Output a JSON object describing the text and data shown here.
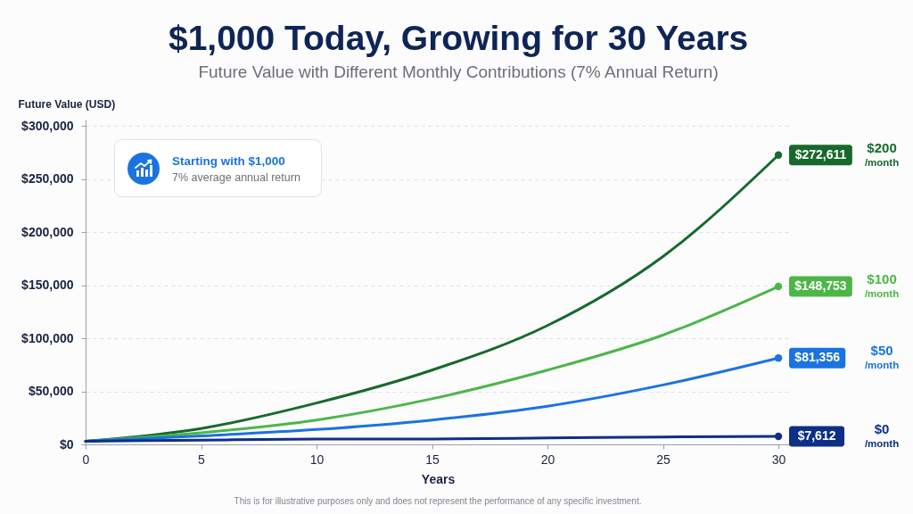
{
  "chart_data": {
    "type": "line",
    "title": "$1,000 Today, Growing for 30 Years",
    "subtitle": "Future Value with Different Monthly Contributions (7% Annual Return)",
    "xlabel": "Years",
    "ylabel": "Future Value (USD)",
    "x": [
      0,
      5,
      10,
      15,
      20,
      25,
      30
    ],
    "xlim": [
      0,
      30.5
    ],
    "xticks": [
      0,
      5,
      10,
      15,
      20,
      25,
      30
    ],
    "ylim": [
      0,
      306000
    ],
    "yticks": [
      {
        "value": 0,
        "label": "$0"
      },
      {
        "value": 50000,
        "label": "$50,000"
      },
      {
        "value": 100000,
        "label": "$100,000"
      },
      {
        "value": 150000,
        "label": "$150,000"
      },
      {
        "value": 200000,
        "label": "$200,000"
      },
      {
        "value": 250000,
        "label": "$250,000"
      },
      {
        "value": 300000,
        "label": "$300,000"
      }
    ],
    "grid": "y",
    "legend": "right",
    "series": [
      {
        "name": "$200 /month",
        "color": "#17692b",
        "values": [
          3000,
          15000,
          39000,
          70000,
          112000,
          177000,
          272611
        ],
        "value_labels": [
          null,
          null,
          null,
          null,
          null,
          null,
          "$272,611"
        ]
      },
      {
        "name": "$100 /month",
        "color": "#4cb648",
        "values": [
          3000,
          11000,
          23000,
          43000,
          70000,
          103000,
          148753
        ],
        "value_labels": [
          null,
          null,
          null,
          null,
          null,
          null,
          "$148,753"
        ]
      },
      {
        "name": "$50 /month",
        "color": "#1a73e0",
        "values": [
          3000,
          8000,
          14000,
          23000,
          36000,
          56000,
          81356
        ],
        "value_labels": [
          null,
          null,
          null,
          null,
          null,
          null,
          "$81,356"
        ]
      },
      {
        "name": "$0 /month",
        "color": "#0d2f87",
        "values": [
          3000,
          4000,
          5000,
          5000,
          6000,
          7000,
          7612
        ],
        "value_labels": [
          null,
          null,
          null,
          null,
          null,
          null,
          "$7,612"
        ]
      }
    ],
    "annotations": [
      "Starting with $1,000",
      "7% average annual return",
      "This is for illustrative purposes only and does not represent the performance of any specific investment."
    ]
  }
}
